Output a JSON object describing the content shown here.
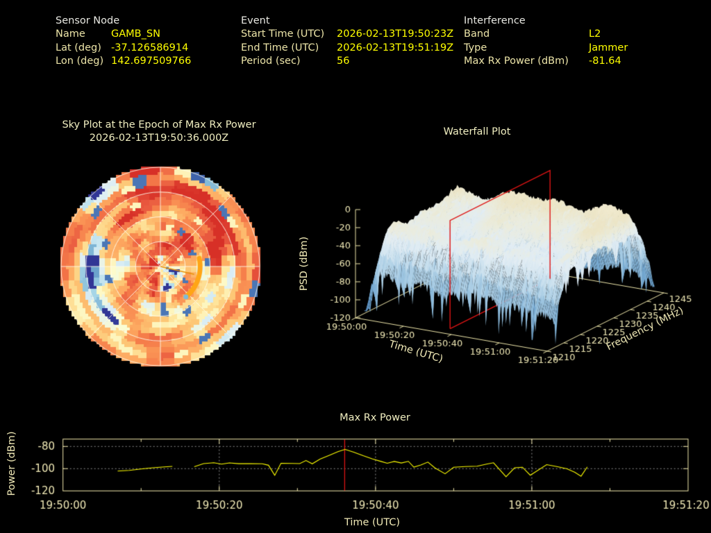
{
  "header": {
    "sensor_node": {
      "title": "Sensor Node",
      "rows": [
        {
          "label": "Name",
          "value": "GAMB_SN"
        },
        {
          "label": "Lat (deg)",
          "value": "-37.126586914"
        },
        {
          "label": "Lon (deg)",
          "value": "142.697509766"
        }
      ]
    },
    "event": {
      "title": "Event",
      "rows": [
        {
          "label": "Start Time (UTC)",
          "value": "2026-02-13T19:50:23Z"
        },
        {
          "label": "End Time (UTC)",
          "value": "2026-02-13T19:51:19Z"
        },
        {
          "label": "Period (sec)",
          "value": "56"
        }
      ]
    },
    "interference": {
      "title": "Interference",
      "rows": [
        {
          "label": "Band",
          "value": "L2"
        },
        {
          "label": "Type",
          "value": "Jammer"
        },
        {
          "label": "Max Rx Power (dBm)",
          "value": "-81.64"
        }
      ]
    }
  },
  "colors": {
    "background": "#000000",
    "value_text": "#ffff00",
    "label_text": "#ece4a8",
    "plot_text": "#f0e9b6",
    "axis_frame": "#efe7ab",
    "series_line": "#ffff00",
    "marker_red": "#dd1414"
  },
  "chart_data": [
    {
      "id": "sky_plot",
      "type": "heatmap",
      "title": "Sky Plot at the Epoch of Max Rx Power",
      "subtitle": "2026-02-13T19:50:36.000Z",
      "projection": "polar-azimuth-elevation",
      "grid": {
        "elevation_rings_frac": [
          0.25,
          0.5,
          0.75,
          1.0
        ],
        "azimuth_spokes_deg": 45
      },
      "palette": "RdYlBu diverging (warm high power, blue low)",
      "palette_stops": [
        [
          0.0,
          "#313695"
        ],
        [
          0.08,
          "#4068ad"
        ],
        [
          0.18,
          "#74add1"
        ],
        [
          0.28,
          "#abd9e9"
        ],
        [
          0.38,
          "#dceef5"
        ],
        [
          0.46,
          "#fdfdd0"
        ],
        [
          0.55,
          "#fee9a2"
        ],
        [
          0.65,
          "#fdc877"
        ],
        [
          0.75,
          "#fda75f"
        ],
        [
          0.85,
          "#f67f4b"
        ],
        [
          0.95,
          "#e7543d"
        ],
        [
          1.0,
          "#d73027"
        ]
      ],
      "cells": {
        "azimuth_bins": 40,
        "elevation_bins": 16,
        "seed": 7,
        "note": "noise field regenerated procedurally to match observed mottled pattern"
      },
      "jammer_track": {
        "color": "#ffa516",
        "radius_frac": 0.4,
        "azimuth_start_deg": 78,
        "azimuth_end_deg": 140,
        "tip_color": "#7fbbd9"
      },
      "pointer_line": {
        "from": "center",
        "azimuth_deg": 103,
        "radius_frac": 0.35,
        "color": "#e8920a"
      }
    },
    {
      "id": "waterfall",
      "type": "3d-surface",
      "title": "Waterfall Plot",
      "xlabel": "Time (UTC)",
      "x_ticks": [
        "19:50:00",
        "19:50:20",
        "19:50:40",
        "19:51:00",
        "19:51:20"
      ],
      "ylabel": "Frequency (MHz)",
      "y_ticks": [
        1210,
        1215,
        1220,
        1225,
        1230,
        1235,
        1240,
        1245
      ],
      "zlabel": "PSD (dBm)",
      "z_ticks": [
        0,
        -20,
        -40,
        -60,
        -80,
        -100,
        -120
      ],
      "slice_marker": {
        "time_utc": "19:50:36",
        "color": "#dd1414",
        "spans": "full frequency and PSD range at epoch of max power"
      },
      "surface": {
        "time_range_s": [
          0,
          80
        ],
        "freq_range_mhz": [
          1212.5,
          1242.5
        ],
        "psd_plateau_dbm": -30,
        "psd_floor_dbm": -110,
        "seed": 42
      },
      "palette_stops": [
        [
          0.0,
          "#4c7cb0"
        ],
        [
          0.15,
          "#699fcb"
        ],
        [
          0.3,
          "#8ab8da"
        ],
        [
          0.45,
          "#aed0e6"
        ],
        [
          0.58,
          "#cde2ef"
        ],
        [
          0.7,
          "#e2edf4"
        ],
        [
          0.8,
          "#ebecdd"
        ],
        [
          0.88,
          "#ece5c6"
        ],
        [
          1.0,
          "#f6efd8"
        ]
      ]
    },
    {
      "id": "max_rx_power",
      "type": "line",
      "title": "Max Rx Power",
      "xlabel": "Time (UTC)",
      "ylabel": "Power (dBm)",
      "x_ticks": [
        {
          "t": 0,
          "label": "19:50:00"
        },
        {
          "t": 20,
          "label": "19:50:20"
        },
        {
          "t": 40,
          "label": "19:50:40"
        },
        {
          "t": 60,
          "label": "19:51:00"
        },
        {
          "t": 80,
          "label": "19:51:20"
        }
      ],
      "y_ticks": [
        -80,
        -100,
        -120
      ],
      "ylim": [
        -120,
        -73.4
      ],
      "xlim_s": [
        0,
        80
      ],
      "line_color": "#ffff00",
      "marker_time_s": 36.05,
      "marker_color": "#dd1414",
      "series_t_dbm": [
        [
          [
            7,
            -102.2
          ],
          [
            8.5,
            -101.5
          ],
          [
            10,
            -100.3
          ],
          [
            11.5,
            -99.2
          ],
          [
            13,
            -98.4
          ],
          [
            14,
            -97.9
          ]
        ],
        [
          [
            16.8,
            -98.2
          ],
          [
            18,
            -95.4
          ],
          [
            19.3,
            -94.7
          ],
          [
            20.3,
            -95.9
          ],
          [
            21.3,
            -94.8
          ],
          [
            22.5,
            -95.5
          ],
          [
            24,
            -95.4
          ],
          [
            25.5,
            -95.6
          ],
          [
            26.3,
            -96.9
          ],
          [
            27.1,
            -106.0
          ],
          [
            27.9,
            -95.1
          ],
          [
            29.3,
            -95.3
          ],
          [
            30.3,
            -95.4
          ],
          [
            31.1,
            -92.7
          ],
          [
            31.9,
            -95.6
          ],
          [
            32.9,
            -91.4
          ],
          [
            34.1,
            -88.0
          ],
          [
            35.2,
            -84.7
          ],
          [
            36.1,
            -82.6
          ],
          [
            37.2,
            -85.1
          ],
          [
            38.4,
            -88.3
          ],
          [
            39.6,
            -91.2
          ],
          [
            40.7,
            -93.5
          ],
          [
            41.5,
            -95.1
          ],
          [
            42.4,
            -93.5
          ],
          [
            43.3,
            -94.9
          ],
          [
            44.2,
            -93.4
          ],
          [
            44.9,
            -98.6
          ],
          [
            45.8,
            -96.7
          ],
          [
            46.7,
            -94.1
          ],
          [
            47.6,
            -99.3
          ],
          [
            48.9,
            -104.6
          ],
          [
            50,
            -98.7
          ],
          [
            51.5,
            -98.1
          ],
          [
            53,
            -97.8
          ],
          [
            54.2,
            -95.9
          ],
          [
            55.1,
            -94.7
          ],
          [
            56.7,
            -107.3
          ],
          [
            57.8,
            -99.2
          ],
          [
            58.8,
            -98.7
          ],
          [
            59.8,
            -105.9
          ],
          [
            61.9,
            -96.4
          ],
          [
            63.3,
            -98.2
          ],
          [
            64.5,
            -100.1
          ],
          [
            65.5,
            -103.2
          ],
          [
            66.3,
            -106.8
          ],
          [
            67.1,
            -98.4
          ]
        ]
      ]
    }
  ]
}
